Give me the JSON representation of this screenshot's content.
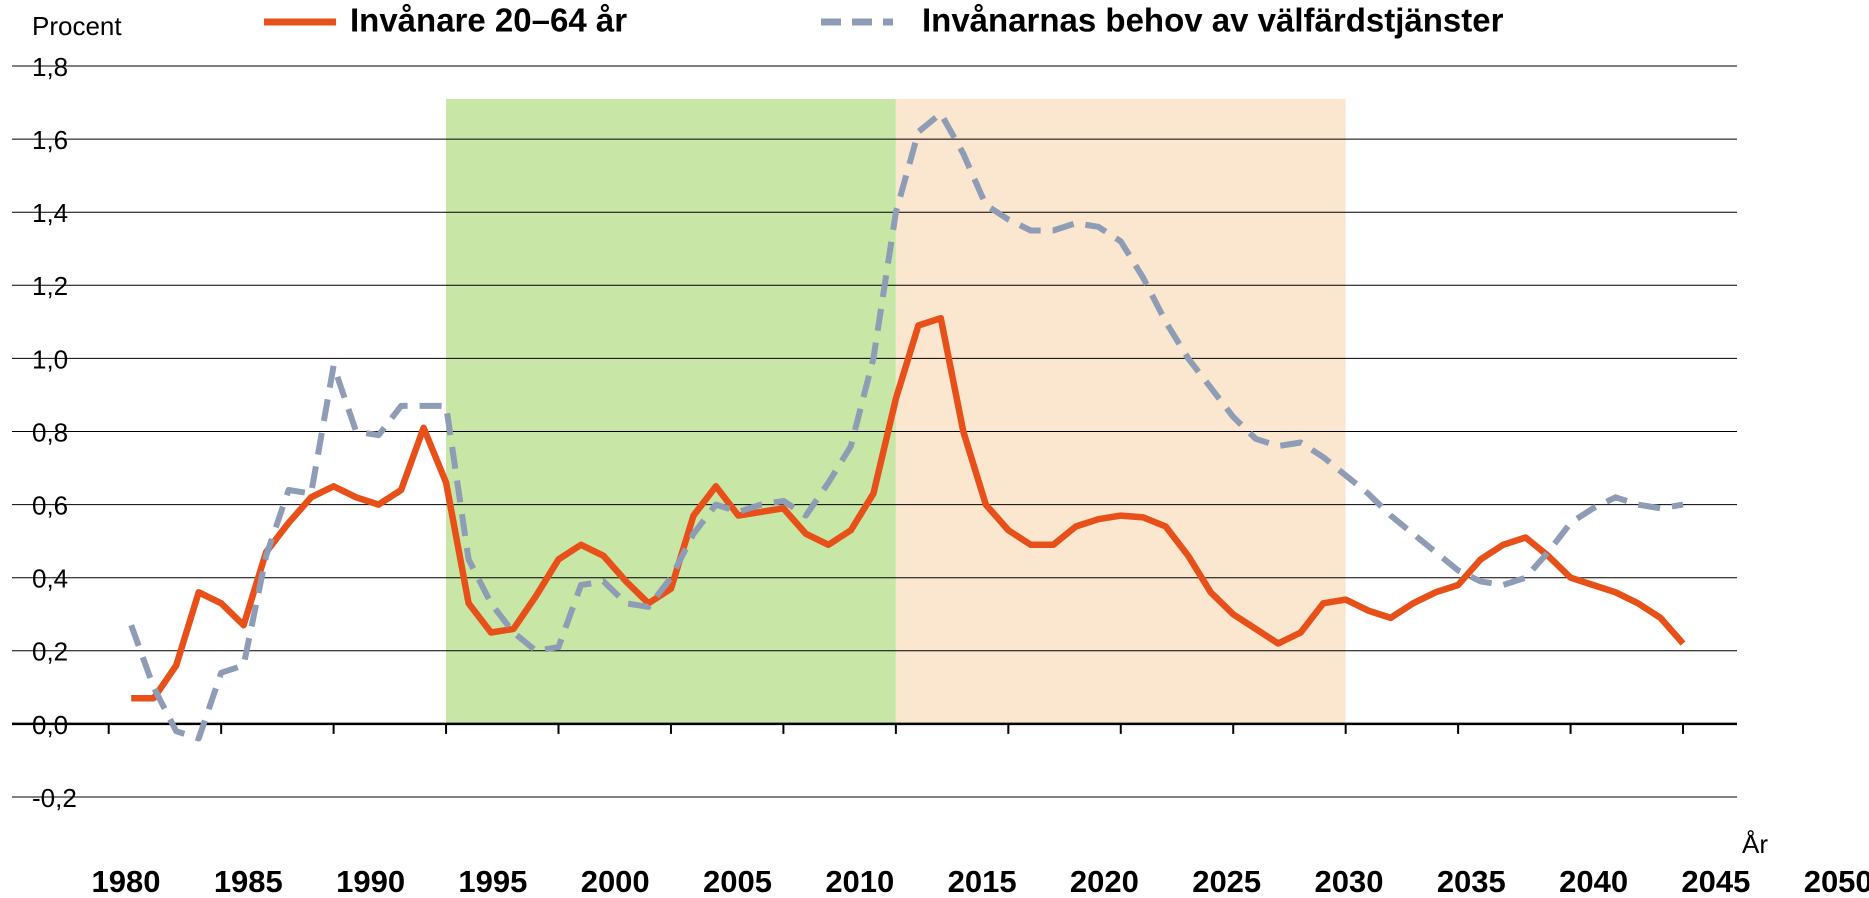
{
  "chart_data": {
    "type": "line",
    "y_axis_label": "Procent",
    "x_axis_label": "År",
    "x": [
      1981,
      1982,
      1983,
      1984,
      1985,
      1986,
      1987,
      1988,
      1989,
      1990,
      1991,
      1992,
      1993,
      1994,
      1995,
      1996,
      1997,
      1998,
      1999,
      2000,
      2001,
      2002,
      2003,
      2004,
      2005,
      2006,
      2007,
      2008,
      2009,
      2010,
      2011,
      2012,
      2013,
      2014,
      2015,
      2016,
      2017,
      2018,
      2019,
      2020,
      2021,
      2022,
      2023,
      2024,
      2025,
      2026,
      2027,
      2028,
      2029,
      2030,
      2031,
      2032,
      2033,
      2034,
      2035,
      2036,
      2037,
      2038,
      2039,
      2040,
      2041,
      2042,
      2043,
      2044,
      2045,
      2046,
      2047,
      2048,
      2049,
      2050
    ],
    "series": [
      {
        "name": "Invånare 20–64 år",
        "color": "#e8501a",
        "dash": false,
        "values": [
          0.07,
          0.07,
          0.16,
          0.36,
          0.33,
          0.27,
          0.47,
          0.55,
          0.62,
          0.65,
          0.62,
          0.6,
          0.64,
          0.81,
          0.66,
          0.33,
          0.25,
          0.26,
          0.35,
          0.45,
          0.49,
          0.46,
          0.39,
          0.33,
          0.37,
          0.57,
          0.65,
          0.57,
          0.58,
          0.59,
          0.52,
          0.49,
          0.53,
          0.63,
          0.89,
          1.09,
          1.11,
          0.8,
          0.6,
          0.53,
          0.49,
          0.49,
          0.54,
          0.56,
          0.57,
          0.565,
          0.54,
          0.46,
          0.36,
          0.3,
          0.26,
          0.22,
          0.25,
          0.33,
          0.34,
          0.31,
          0.29,
          0.33,
          0.36,
          0.38,
          0.45,
          0.49,
          0.51,
          0.46,
          0.4,
          0.38,
          0.36,
          0.33,
          0.29,
          0.22
        ]
      },
      {
        "name": "Invånarnas behov av välfärdstjänster",
        "color": "#8e9cb5",
        "dash": true,
        "values": [
          0.27,
          0.1,
          -0.02,
          -0.04,
          0.14,
          0.16,
          0.46,
          0.64,
          0.63,
          0.98,
          0.8,
          0.79,
          0.87,
          0.87,
          0.87,
          0.45,
          0.33,
          0.25,
          0.2,
          0.21,
          0.38,
          0.39,
          0.33,
          0.32,
          0.4,
          0.52,
          0.6,
          0.58,
          0.6,
          0.61,
          0.57,
          0.66,
          0.76,
          1.0,
          1.4,
          1.62,
          1.67,
          1.56,
          1.42,
          1.38,
          1.35,
          1.35,
          1.37,
          1.36,
          1.32,
          1.22,
          1.1,
          1.0,
          0.92,
          0.84,
          0.78,
          0.76,
          0.77,
          0.73,
          0.68,
          0.63,
          0.57,
          0.52,
          0.47,
          0.42,
          0.39,
          0.38,
          0.4,
          0.47,
          0.55,
          0.59,
          0.62,
          0.6,
          0.59,
          0.6
        ]
      }
    ],
    "shaded_regions": [
      {
        "from": 1995,
        "to": 2015,
        "bottom": 0,
        "top": 1.71,
        "color": "#c8e6a5"
      },
      {
        "from": 2015,
        "to": 2035,
        "bottom": 0,
        "top": 1.71,
        "color": "#fbe6d0"
      }
    ],
    "xlim": [
      1975.7,
      2052.4
    ],
    "xticks": [
      1980,
      1985,
      1990,
      1995,
      2000,
      2005,
      2010,
      2015,
      2020,
      2025,
      2030,
      2035,
      2040,
      2045,
      2050
    ],
    "ylim": [
      -0.2,
      1.8
    ],
    "yticks": [
      {
        "value": -0.2,
        "label": "-0,2"
      },
      {
        "value": 0,
        "label": "0,0"
      },
      {
        "value": 0.2,
        "label": "0,2"
      },
      {
        "value": 0.4,
        "label": "0,4"
      },
      {
        "value": 0.6,
        "label": "0,6"
      },
      {
        "value": 0.8,
        "label": "0,8"
      },
      {
        "value": 1.0,
        "label": "1,0"
      },
      {
        "value": 1.2,
        "label": "1,2"
      },
      {
        "value": 1.4,
        "label": "1,4"
      },
      {
        "value": 1.6,
        "label": "1,6"
      },
      {
        "value": 1.8,
        "label": "1,8"
      }
    ],
    "grid": true
  }
}
